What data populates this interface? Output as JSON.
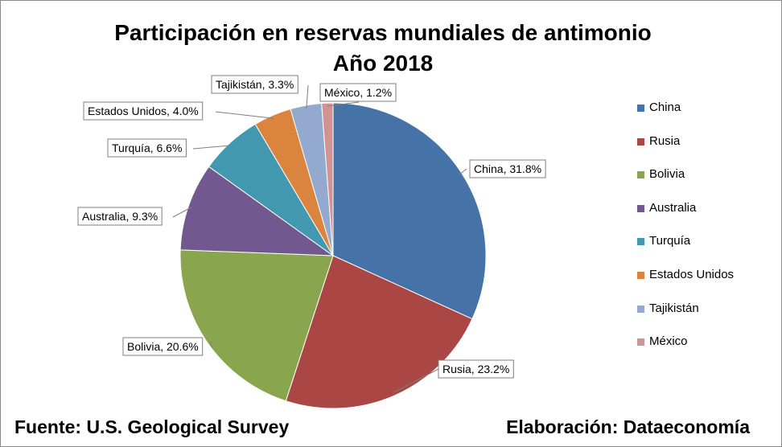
{
  "chart_data": {
    "type": "pie",
    "title": "Participación en reservas mundiales de antimonio",
    "subtitle": "Año 2018",
    "legend_position": "right",
    "slices": [
      {
        "label": "China",
        "value": 31.8,
        "data_label": "China, 31.8%",
        "color": "#4572A7"
      },
      {
        "label": "Rusia",
        "value": 23.2,
        "data_label": "Rusia, 23.2%",
        "color": "#AA4643"
      },
      {
        "label": "Bolivia",
        "value": 20.6,
        "data_label": "Bolivia, 20.6%",
        "color": "#89A54E"
      },
      {
        "label": "Australia",
        "value": 9.3,
        "data_label": "Australia, 9.3%",
        "color": "#71588F"
      },
      {
        "label": "Turquía",
        "value": 6.6,
        "data_label": "Turquía, 6.6%",
        "color": "#4198AF"
      },
      {
        "label": "Estados Unidos",
        "value": 4.0,
        "data_label": "Estados Unidos, 4.0%",
        "color": "#DB843D"
      },
      {
        "label": "Tajikistán",
        "value": 3.3,
        "data_label": "Tajikistán, 3.3%",
        "color": "#93A9CF"
      },
      {
        "label": "México",
        "value": 1.2,
        "data_label": "México, 1.2%",
        "color": "#D19392"
      }
    ]
  },
  "footer": {
    "source": "Fuente: U.S. Geological Survey",
    "credit": "Elaboración: Dataeconomía"
  }
}
